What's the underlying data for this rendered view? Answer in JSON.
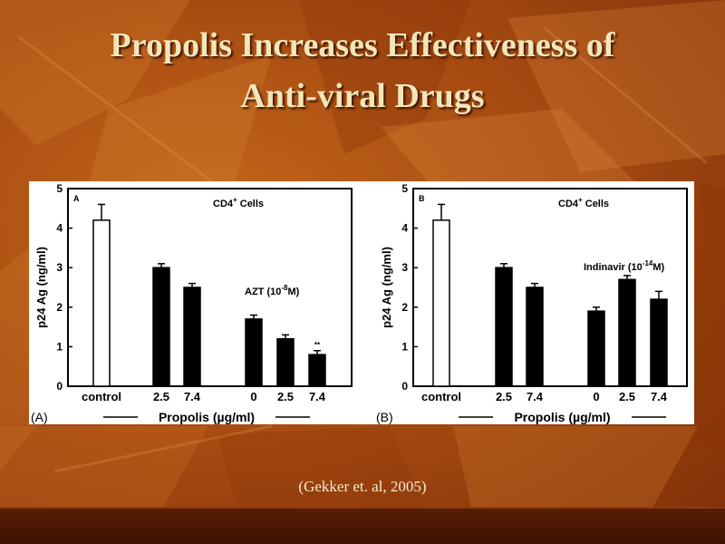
{
  "slide": {
    "title_line1": "Propolis Increases Effectiveness of",
    "title_line2": "Anti-viral Drugs",
    "citation": "(Gekker et. al, 2005)"
  },
  "colors": {
    "background": "#a94c12",
    "title": "#f3e6b8",
    "bar_control": "#ffffff",
    "bar_treatment": "#000000"
  },
  "chart_data": [
    {
      "type": "bar",
      "panel_letter": "A",
      "panel_label": "(A)",
      "title": "CD4+ Cells",
      "title_main": "CD4",
      "title_sup": "+",
      "title_rest": " Cells",
      "annotation": "AZT (10-8M)",
      "annotation_main": "AZT (10",
      "annotation_sup": "-8",
      "annotation_rest": "M)",
      "ylabel": "p24 Ag (ng/ml)",
      "xlabel": "Propolis (µg/ml)",
      "ylim": [
        0,
        5
      ],
      "yticks": [
        "0",
        "1",
        "2",
        "3",
        "4",
        "5"
      ],
      "categories": [
        "control",
        "2.5",
        "7.4",
        "0",
        "2.5",
        "7.4"
      ],
      "values": [
        4.2,
        3.0,
        2.5,
        1.7,
        1.2,
        0.8
      ],
      "errors": [
        0.4,
        0.1,
        0.1,
        0.1,
        0.1,
        0.1
      ],
      "fills": [
        "white",
        "black",
        "black",
        "black",
        "black",
        "black"
      ],
      "significance": [
        "",
        "",
        "",
        "",
        "",
        "**"
      ]
    },
    {
      "type": "bar",
      "panel_letter": "B",
      "panel_label": "(B)",
      "title": "CD4+ Cells",
      "title_main": "CD4",
      "title_sup": "+",
      "title_rest": " Cells",
      "annotation": "Indinavir (10-14M)",
      "annotation_main": "Indinavir (10",
      "annotation_sup": "-14",
      "annotation_rest": "M)",
      "ylabel": "p24 Ag (ng/ml)",
      "xlabel": "Propolis (µg/ml)",
      "ylim": [
        0,
        5
      ],
      "yticks": [
        "0",
        "1",
        "2",
        "3",
        "4",
        "5"
      ],
      "categories": [
        "control",
        "2.5",
        "7.4",
        "0",
        "2.5",
        "7.4"
      ],
      "values": [
        4.2,
        3.0,
        2.5,
        1.9,
        2.7,
        2.2
      ],
      "errors": [
        0.4,
        0.1,
        0.1,
        0.1,
        0.1,
        0.2
      ],
      "fills": [
        "white",
        "black",
        "black",
        "black",
        "black",
        "black"
      ],
      "significance": [
        "",
        "",
        "",
        "",
        "",
        ""
      ]
    }
  ]
}
